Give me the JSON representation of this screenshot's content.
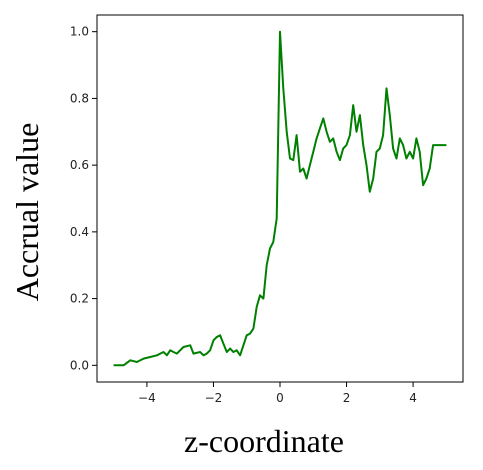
{
  "chart_data": {
    "type": "line",
    "xlabel": "z-coordinate",
    "ylabel": "Accrual value",
    "xlim": [
      -5.5,
      5.5
    ],
    "ylim": [
      -0.05,
      1.05
    ],
    "x_ticks": [
      -4,
      -2,
      0,
      2,
      4
    ],
    "x_tick_labels": [
      "−4",
      "−2",
      "0",
      "2",
      "4"
    ],
    "y_ticks": [
      0.0,
      0.2,
      0.4,
      0.6,
      0.8,
      1.0
    ],
    "y_tick_labels": [
      "0.0",
      "0.2",
      "0.4",
      "0.6",
      "0.8",
      "1.0"
    ],
    "grid": false,
    "series": [
      {
        "color": "#008000",
        "x": [
          -5.0,
          -4.7,
          -4.5,
          -4.3,
          -4.1,
          -3.9,
          -3.7,
          -3.5,
          -3.4,
          -3.3,
          -3.2,
          -3.1,
          -2.9,
          -2.7,
          -2.6,
          -2.4,
          -2.3,
          -2.2,
          -2.1,
          -2.0,
          -1.9,
          -1.8,
          -1.7,
          -1.6,
          -1.5,
          -1.4,
          -1.3,
          -1.2,
          -1.1,
          -1.0,
          -0.9,
          -0.8,
          -0.7,
          -0.6,
          -0.5,
          -0.4,
          -0.3,
          -0.2,
          -0.1,
          0.0,
          0.1,
          0.2,
          0.3,
          0.4,
          0.5,
          0.6,
          0.7,
          0.8,
          0.9,
          1.0,
          1.1,
          1.2,
          1.3,
          1.4,
          1.5,
          1.6,
          1.7,
          1.8,
          1.9,
          2.0,
          2.1,
          2.2,
          2.3,
          2.4,
          2.5,
          2.6,
          2.7,
          2.8,
          2.9,
          3.0,
          3.1,
          3.2,
          3.3,
          3.4,
          3.5,
          3.6,
          3.7,
          3.8,
          3.9,
          4.0,
          4.1,
          4.2,
          4.3,
          4.4,
          4.5,
          4.6,
          4.7,
          4.8,
          4.9,
          5.0
        ],
        "y": [
          0.0,
          0.0,
          0.015,
          0.01,
          0.02,
          0.025,
          0.03,
          0.04,
          0.03,
          0.045,
          0.04,
          0.035,
          0.055,
          0.06,
          0.035,
          0.04,
          0.03,
          0.035,
          0.045,
          0.075,
          0.085,
          0.09,
          0.065,
          0.04,
          0.05,
          0.04,
          0.045,
          0.03,
          0.06,
          0.09,
          0.095,
          0.11,
          0.175,
          0.21,
          0.2,
          0.3,
          0.35,
          0.37,
          0.44,
          1.0,
          0.83,
          0.7,
          0.62,
          0.615,
          0.69,
          0.58,
          0.59,
          0.56,
          0.6,
          0.64,
          0.68,
          0.71,
          0.74,
          0.7,
          0.67,
          0.68,
          0.64,
          0.615,
          0.65,
          0.66,
          0.69,
          0.78,
          0.7,
          0.75,
          0.66,
          0.6,
          0.52,
          0.56,
          0.64,
          0.65,
          0.69,
          0.83,
          0.75,
          0.65,
          0.62,
          0.68,
          0.66,
          0.62,
          0.64,
          0.62,
          0.68,
          0.64,
          0.54,
          0.56,
          0.59,
          0.66,
          0.66,
          0.66,
          0.66,
          0.66
        ]
      }
    ]
  }
}
